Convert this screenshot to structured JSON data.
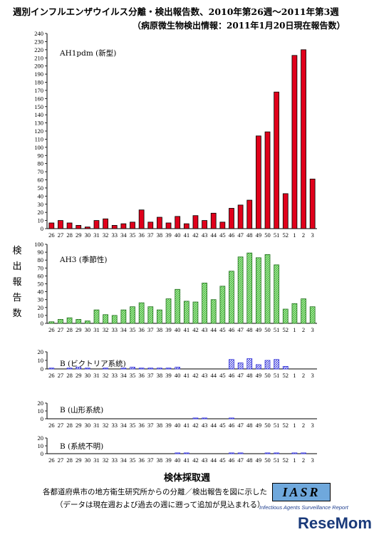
{
  "title": "週別インフルエンザウイルス分離・検出報告数、2010年第26週～2011年第3週",
  "subtitle": "（病原微生物検出情報：2011年1月20日現在報告数）",
  "ylabel_chars": [
    "検",
    "出",
    "報",
    "告",
    "数"
  ],
  "xlabel": "検体採取週",
  "note1": "各都道府県市の地方衛生研究所からの分離／検出報告を図に示した",
  "note2": "（データは現在週および過去の週に遡って追加が見込まれる）",
  "logo": "IASR",
  "logo_sub": "Infectious Agents Surveillance Report",
  "watermark": "ReseMom",
  "colors": {
    "ah1": "#e0001b",
    "ah3": "#7ddc6b",
    "bvic": "#2f2fd8",
    "byam": "#2f2fd8",
    "bunk": "#2f2fd8"
  },
  "chart_data": [
    {
      "type": "bar",
      "name": "AH1pdm (新型)",
      "categories": [
        "26",
        "27",
        "28",
        "29",
        "30",
        "31",
        "32",
        "33",
        "34",
        "35",
        "36",
        "37",
        "38",
        "39",
        "40",
        "41",
        "42",
        "43",
        "44",
        "45",
        "46",
        "47",
        "48",
        "49",
        "50",
        "51",
        "52",
        "1",
        "2",
        "3"
      ],
      "values": [
        7,
        10,
        7,
        4,
        2,
        10,
        12,
        4,
        6,
        8,
        23,
        8,
        14,
        7,
        15,
        6,
        16,
        10,
        19,
        8,
        25,
        29,
        35,
        114,
        119,
        168,
        43,
        213,
        220,
        61
      ],
      "ylim": [
        0,
        240
      ],
      "yticks": [
        0,
        10,
        20,
        30,
        40,
        50,
        60,
        70,
        80,
        90,
        100,
        110,
        120,
        130,
        140,
        150,
        160,
        170,
        180,
        190,
        200,
        210,
        220,
        230,
        240
      ]
    },
    {
      "type": "bar",
      "name": "AH3 (季節性)",
      "categories": [
        "26",
        "27",
        "28",
        "29",
        "30",
        "31",
        "32",
        "33",
        "34",
        "35",
        "36",
        "37",
        "38",
        "39",
        "40",
        "41",
        "42",
        "43",
        "44",
        "45",
        "46",
        "47",
        "48",
        "49",
        "50",
        "51",
        "52",
        "1",
        "2",
        "3"
      ],
      "values": [
        2,
        5,
        7,
        5,
        3,
        17,
        11,
        10,
        17,
        21,
        26,
        21,
        17,
        31,
        43,
        28,
        27,
        51,
        30,
        47,
        66,
        84,
        89,
        83,
        87,
        74,
        18,
        25,
        31,
        21
      ],
      "ylim": [
        0,
        100
      ],
      "yticks": [
        0,
        10,
        20,
        30,
        40,
        50,
        60,
        70,
        80,
        90,
        100
      ]
    },
    {
      "type": "bar",
      "name": "B (ビクトリア系統)",
      "categories": [
        "26",
        "27",
        "28",
        "29",
        "30",
        "31",
        "32",
        "33",
        "34",
        "35",
        "36",
        "37",
        "38",
        "39",
        "40",
        "41",
        "42",
        "43",
        "44",
        "45",
        "46",
        "47",
        "48",
        "49",
        "50",
        "51",
        "52",
        "1",
        "2",
        "3"
      ],
      "values": [
        1,
        0,
        1,
        2,
        1,
        0,
        1,
        0,
        1,
        2,
        1,
        1,
        1,
        1,
        2,
        0,
        0,
        0,
        0,
        0,
        11,
        7,
        12,
        5,
        10,
        11,
        3,
        0,
        0,
        0
      ],
      "ylim": [
        0,
        20
      ],
      "yticks": [
        0,
        10,
        20
      ]
    },
    {
      "type": "bar",
      "name": "B (山形系統)",
      "categories": [
        "26",
        "27",
        "28",
        "29",
        "30",
        "31",
        "32",
        "33",
        "34",
        "35",
        "36",
        "37",
        "38",
        "39",
        "40",
        "41",
        "42",
        "43",
        "44",
        "45",
        "46",
        "47",
        "48",
        "49",
        "50",
        "51",
        "52",
        "1",
        "2",
        "3"
      ],
      "values": [
        0,
        0,
        0,
        0,
        0,
        0,
        0,
        0,
        0,
        0,
        0,
        0,
        0,
        0,
        0,
        0,
        1,
        1,
        0,
        0,
        1,
        0,
        0,
        0,
        0,
        0,
        0,
        0,
        0,
        0
      ],
      "ylim": [
        0,
        20
      ],
      "yticks": [
        0,
        10,
        20
      ]
    },
    {
      "type": "bar",
      "name": "B (系統不明)",
      "categories": [
        "26",
        "27",
        "28",
        "29",
        "30",
        "31",
        "32",
        "33",
        "34",
        "35",
        "36",
        "37",
        "38",
        "39",
        "40",
        "41",
        "42",
        "43",
        "44",
        "45",
        "46",
        "47",
        "48",
        "49",
        "50",
        "51",
        "52",
        "1",
        "2",
        "3"
      ],
      "values": [
        0,
        0,
        0,
        0,
        0,
        0,
        0,
        0,
        0,
        0,
        0,
        0,
        0,
        0,
        1,
        1,
        0,
        0,
        0,
        0,
        1,
        1,
        0,
        0,
        1,
        1,
        0,
        1,
        1,
        0
      ],
      "ylim": [
        0,
        20
      ],
      "yticks": [
        0,
        10,
        20
      ]
    }
  ]
}
